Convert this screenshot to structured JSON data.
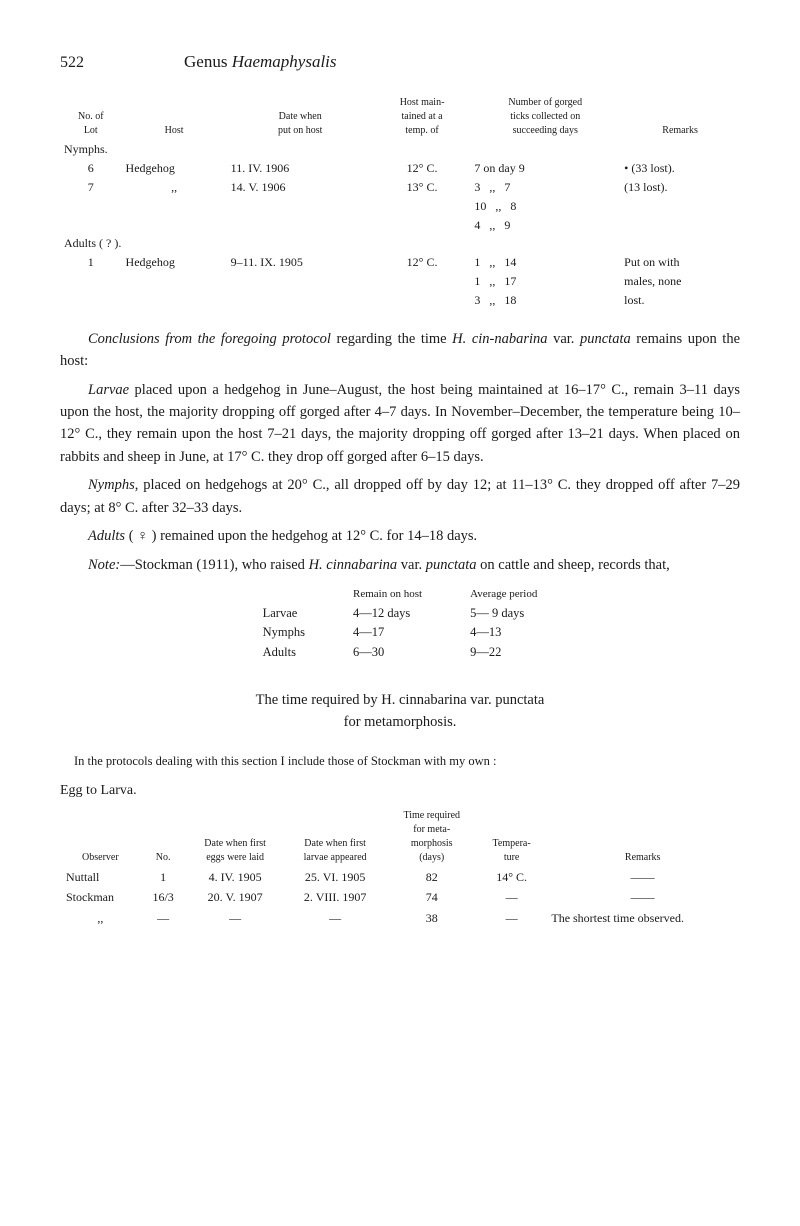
{
  "header": {
    "page_number": "522",
    "genus_label": "Genus",
    "genus_name": "Haemaphysalis"
  },
  "table1": {
    "headers": {
      "no_lot": "No. of\nLot",
      "host": "Host",
      "date": "Date when\nput on host",
      "hostmain": "Host main-\ntained at a\ntemp. of",
      "number": "Number of gorged\nticks collected on\nsucceeding days",
      "remarks": "Remarks"
    },
    "nymphs_label": "Nymphs.",
    "nymphs": [
      {
        "lot": "6",
        "host": "Hedgehog",
        "date": "11. IV. 1906",
        "temp": "12° C.",
        "ticks": "7 on day 9",
        "remark": "• (33 lost)."
      },
      {
        "lot": "7",
        "host": ",,",
        "date": "14. V. 1906",
        "temp": "13° C.",
        "ticks": "3   ,,   7",
        "remark": "(13 lost)."
      },
      {
        "lot": "",
        "host": "",
        "date": "",
        "temp": "",
        "ticks": "10   ,,   8",
        "remark": ""
      },
      {
        "lot": "",
        "host": "",
        "date": "",
        "temp": "",
        "ticks": "4   ,,   9",
        "remark": ""
      }
    ],
    "adults_label": "Adults ( ? ).",
    "adults": [
      {
        "lot": "1",
        "host": "Hedgehog",
        "date": "9–11. IX. 1905",
        "temp": "12° C.",
        "ticks": "1   ,,   14",
        "remark": "Put on with"
      },
      {
        "lot": "",
        "host": "",
        "date": "",
        "temp": "",
        "ticks": "1   ,,   17",
        "remark": "males, none"
      },
      {
        "lot": "",
        "host": "",
        "date": "",
        "temp": "",
        "ticks": "3   ,,   18",
        "remark": "lost."
      }
    ]
  },
  "paragraphs": {
    "p1_a": "Conclusions from the foregoing protocol",
    "p1_b": " regarding the time ",
    "p1_c": "H. cin-nabarina",
    "p1_d": " var. ",
    "p1_e": "punctata",
    "p1_f": " remains upon the host:",
    "p2_a": "Larvae",
    "p2_b": " placed upon a hedgehog in June–August, the host being maintained at 16–17° C., remain 3–11 days upon the host, the majority dropping off gorged after 4–7 days. In November–December, the temperature being 10–12° C., they remain upon the host 7–21 days, the majority dropping off gorged after 13–21 days. When placed on rabbits and sheep in June, at 17° C. they drop off gorged after 6–15 days.",
    "p3_a": "Nymphs",
    "p3_b": ", placed on hedgehogs at 20° C., all dropped off by day 12; at 11–13° C. they dropped off after 7–29 days; at 8° C. after 32–33 days.",
    "p4_a": "Adults",
    "p4_b": " ( ♀ ) remained upon the hedgehog at 12° C. for 14–18 days.",
    "p5_a": "Note:",
    "p5_b": "—Stockman (1911), who raised ",
    "p5_c": "H. cinnabarina",
    "p5_d": " var. ",
    "p5_e": "punctata",
    "p5_f": " on cattle and sheep, records that,"
  },
  "remain": {
    "h1": "Remain on host",
    "h2": "Average period",
    "rows": [
      {
        "label": "Larvae",
        "v1": "4—12 days",
        "v2": "5— 9 days"
      },
      {
        "label": "Nymphs",
        "v1": "4—17",
        "v2": "4—13"
      },
      {
        "label": "Adults",
        "v1": "6—30",
        "v2": "9—22"
      }
    ]
  },
  "heading": {
    "line1": "The time required by H. cinnabarina var. punctata",
    "line2": "for metamorphosis."
  },
  "protocols_line": "In the protocols dealing with this section I include those of Stockman with my own :",
  "egg_label": "Egg to Larva.",
  "egg_table": {
    "headers": {
      "observer": "Observer",
      "no": "No.",
      "date_eggs": "Date when first\neggs were laid",
      "date_larvae": "Date when first\nlarvae appeared",
      "time": "Time required\nfor meta-\nmorphosis\n(days)",
      "temp": "Tempera-\nture",
      "remarks": "Remarks"
    },
    "rows": [
      {
        "observer": "Nuttall",
        "no": "1",
        "date_eggs": "4. IV. 1905",
        "date_larvae": "25. VI. 1905",
        "time": "82",
        "temp": "14° C.",
        "remarks": "——"
      },
      {
        "observer": "Stockman",
        "no": "16/3",
        "date_eggs": "20. V. 1907",
        "date_larvae": "2. VIII. 1907",
        "time": "74",
        "temp": "—",
        "remarks": "——"
      },
      {
        "observer": ",,",
        "no": "—",
        "date_eggs": "—",
        "date_larvae": "—",
        "time": "38",
        "temp": "—",
        "remarks": "The shortest time observed."
      }
    ]
  }
}
